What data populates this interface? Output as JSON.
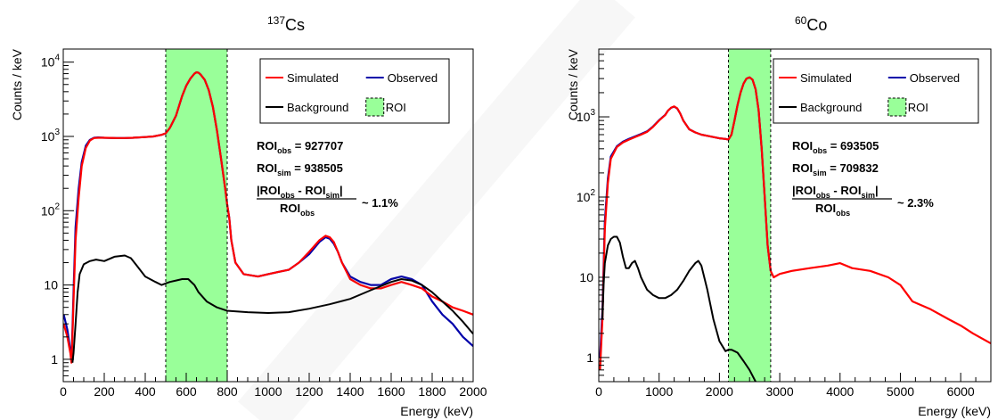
{
  "chart_data": [
    {
      "type": "line",
      "title_isotope_mass": "137",
      "title_isotope_symbol": "Cs",
      "xlabel": "Energy (keV)",
      "ylabel": "Counts / keV",
      "xlim": [
        0,
        2000
      ],
      "ylim": [
        0.5,
        15000
      ],
      "y_scale": "log",
      "xticks": [
        0,
        200,
        400,
        600,
        800,
        1000,
        1200,
        1400,
        1600,
        1800,
        2000
      ],
      "yticks": [
        {
          "value": 1,
          "base": "1",
          "exp": ""
        },
        {
          "value": 10,
          "base": "10",
          "exp": ""
        },
        {
          "value": 100,
          "base": "10",
          "exp": "2"
        },
        {
          "value": 1000,
          "base": "10",
          "exp": "3"
        },
        {
          "value": 10000,
          "base": "10",
          "exp": "4"
        }
      ],
      "roi": [
        500,
        800
      ],
      "legend": {
        "placement": "top-right",
        "entries": [
          {
            "label": "Simulated",
            "color": "#ff0000",
            "kind": "line"
          },
          {
            "label": "Observed",
            "color": "#0000aa",
            "kind": "line"
          },
          {
            "label": "Background",
            "color": "#000000",
            "kind": "line"
          },
          {
            "label": "ROI",
            "color": "#99ff99",
            "kind": "box"
          }
        ]
      },
      "annotation": {
        "obs_label": "ROI",
        "obs_sub": "obs",
        "obs_value": "= 927707",
        "sim_label": "ROI",
        "sim_sub": "sim",
        "sim_value": "= 938505",
        "ratio_value": "~ 1.1%"
      },
      "series": [
        {
          "name": "Simulated",
          "color": "#ff0000",
          "x": [
            2,
            20,
            35,
            40,
            45,
            50,
            60,
            75,
            90,
            110,
            130,
            150,
            170,
            200,
            260,
            300,
            340,
            400,
            440,
            480,
            500,
            520,
            550,
            580,
            600,
            620,
            640,
            650,
            660,
            670,
            690,
            710,
            730,
            750,
            770,
            790,
            800,
            810,
            820,
            840,
            880,
            950,
            1000,
            1050,
            1100,
            1150,
            1200,
            1250,
            1280,
            1300,
            1320,
            1340,
            1360,
            1400,
            1450,
            1500,
            1550,
            1600,
            1650,
            1700,
            1750,
            1800,
            1850,
            1900,
            1950,
            2000
          ],
          "y": [
            3,
            2,
            1.2,
            0.9,
            2,
            6,
            40,
            150,
            400,
            700,
            880,
            950,
            960,
            960,
            950,
            950,
            960,
            980,
            1000,
            1050,
            1100,
            1300,
            1900,
            3500,
            4800,
            6000,
            7000,
            7300,
            7200,
            6800,
            5800,
            4200,
            2500,
            1200,
            500,
            200,
            120,
            80,
            40,
            20,
            14,
            13,
            14,
            15,
            16,
            20,
            28,
            40,
            46,
            44,
            38,
            28,
            20,
            12,
            10,
            9,
            9,
            10,
            11,
            10,
            9,
            7,
            6,
            5,
            4.5,
            4
          ]
        },
        {
          "name": "Observed",
          "color": "#0000aa",
          "x": [
            2,
            20,
            35,
            40,
            45,
            50,
            60,
            75,
            90,
            110,
            130,
            150,
            170,
            200,
            260,
            300,
            340,
            400,
            440,
            480,
            500,
            520,
            550,
            580,
            600,
            620,
            640,
            650,
            660,
            670,
            690,
            710,
            730,
            750,
            770,
            790,
            800,
            810,
            820,
            840,
            880,
            950,
            1000,
            1050,
            1100,
            1150,
            1200,
            1250,
            1280,
            1300,
            1320,
            1340,
            1360,
            1400,
            1450,
            1500,
            1550,
            1600,
            1650,
            1700,
            1750,
            1800,
            1850,
            1900,
            1950,
            2000
          ],
          "y": [
            4,
            2.5,
            1.3,
            1.0,
            2.5,
            8,
            60,
            200,
            450,
            750,
            900,
            960,
            970,
            960,
            950,
            950,
            960,
            980,
            1000,
            1050,
            1100,
            1300,
            1900,
            3500,
            4800,
            6000,
            7000,
            7300,
            7200,
            6800,
            5800,
            4200,
            2500,
            1200,
            500,
            200,
            120,
            80,
            40,
            20,
            14,
            13,
            14,
            15,
            16,
            20,
            26,
            38,
            44,
            42,
            36,
            28,
            20,
            13,
            11,
            10,
            10,
            12,
            13,
            12,
            10,
            6,
            4,
            3,
            2,
            1.5
          ]
        },
        {
          "name": "Background",
          "color": "#000000",
          "x": [
            45,
            50,
            60,
            70,
            80,
            100,
            130,
            160,
            200,
            250,
            300,
            330,
            360,
            400,
            450,
            480,
            500,
            520,
            550,
            580,
            610,
            640,
            660,
            700,
            750,
            800,
            900,
            1000,
            1100,
            1200,
            1300,
            1400,
            1500,
            1600,
            1650,
            1700,
            1750,
            1800,
            1850,
            1900,
            1950,
            2000
          ],
          "y": [
            0.9,
            1.2,
            3,
            8,
            14,
            19,
            21,
            22,
            21,
            24,
            25,
            23,
            18,
            13,
            11,
            10,
            10.5,
            11,
            11.5,
            12,
            12,
            10,
            8,
            6,
            5,
            4.5,
            4.3,
            4.2,
            4.3,
            4.8,
            5.5,
            6.5,
            8.5,
            11,
            12,
            11.5,
            10,
            8,
            6,
            4.5,
            3.2,
            2.2
          ]
        }
      ]
    },
    {
      "type": "line",
      "title_isotope_mass": "60",
      "title_isotope_symbol": "Co",
      "xlabel": "Energy (keV)",
      "ylabel": "Counts / keV",
      "xlim": [
        0,
        6500
      ],
      "ylim": [
        0.5,
        7000
      ],
      "y_scale": "log",
      "xticks": [
        0,
        1000,
        2000,
        3000,
        4000,
        5000,
        6000
      ],
      "yticks": [
        {
          "value": 1,
          "base": "1",
          "exp": ""
        },
        {
          "value": 10,
          "base": "10",
          "exp": ""
        },
        {
          "value": 100,
          "base": "10",
          "exp": "2"
        },
        {
          "value": 1000,
          "base": "10",
          "exp": "3"
        }
      ],
      "roi": [
        2150,
        2850
      ],
      "legend": {
        "placement": "top-right",
        "entries": [
          {
            "label": "Simulated",
            "color": "#ff0000",
            "kind": "line"
          },
          {
            "label": "Observed",
            "color": "#0000aa",
            "kind": "line"
          },
          {
            "label": "Background",
            "color": "#000000",
            "kind": "line"
          },
          {
            "label": "ROI",
            "color": "#99ff99",
            "kind": "box"
          }
        ]
      },
      "annotation": {
        "obs_label": "ROI",
        "obs_sub": "obs",
        "obs_value": "= 693505",
        "sim_label": "ROI",
        "sim_sub": "sim",
        "sim_value": "= 709832",
        "ratio_value": "~ 2.3%"
      },
      "series": [
        {
          "name": "Simulated",
          "color": "#ff0000",
          "x": [
            20,
            60,
            100,
            150,
            200,
            300,
            400,
            500,
            600,
            700,
            800,
            900,
            1000,
            1100,
            1150,
            1200,
            1250,
            1300,
            1350,
            1400,
            1500,
            1600,
            1700,
            1800,
            1900,
            2000,
            2100,
            2150,
            2200,
            2250,
            2300,
            2350,
            2400,
            2450,
            2500,
            2550,
            2600,
            2650,
            2700,
            2750,
            2800,
            2850,
            2900,
            3000,
            3200,
            3500,
            3800,
            4000,
            4200,
            4500,
            4800,
            5000,
            5200,
            5500,
            5800,
            6000,
            6200,
            6500
          ],
          "y": [
            0.7,
            3,
            40,
            150,
            300,
            420,
            480,
            520,
            560,
            600,
            650,
            750,
            900,
            1050,
            1200,
            1300,
            1350,
            1280,
            1100,
            900,
            700,
            640,
            600,
            580,
            560,
            540,
            530,
            520,
            600,
            900,
            1400,
            2000,
            2600,
            3000,
            3100,
            2900,
            2200,
            1200,
            400,
            100,
            25,
            12,
            10,
            11,
            12,
            13,
            14,
            15,
            13,
            12,
            10,
            8,
            5,
            4,
            3,
            2.5,
            2,
            1.5
          ]
        },
        {
          "name": "Observed",
          "color": "#0000aa",
          "x": [
            20,
            60,
            100,
            150,
            200,
            300,
            400,
            500,
            600,
            700,
            800,
            900,
            1000,
            1100,
            1150,
            1200,
            1250,
            1300,
            1350,
            1400,
            1500,
            1600,
            1700,
            1800,
            1900,
            2000,
            2100,
            2150,
            2200,
            2250,
            2300,
            2350,
            2400,
            2450,
            2500,
            2550,
            2600,
            2650,
            2700,
            2750,
            2800,
            2850
          ],
          "y": [
            1,
            4,
            50,
            170,
            320,
            430,
            490,
            530,
            570,
            610,
            660,
            760,
            910,
            1060,
            1200,
            1300,
            1340,
            1270,
            1100,
            900,
            700,
            640,
            600,
            580,
            560,
            540,
            530,
            520,
            600,
            900,
            1400,
            2000,
            2600,
            3000,
            3100,
            2900,
            2200,
            1200,
            400,
            100,
            25,
            12
          ]
        },
        {
          "name": "Background",
          "color": "#000000",
          "x": [
            60,
            80,
            100,
            150,
            200,
            250,
            300,
            350,
            400,
            450,
            500,
            550,
            600,
            650,
            700,
            800,
            900,
            1000,
            1100,
            1200,
            1300,
            1400,
            1500,
            1600,
            1650,
            1700,
            1800,
            1900,
            2000,
            2100,
            2150,
            2200,
            2250,
            2300,
            2400,
            2500,
            2600
          ],
          "y": [
            3,
            8,
            15,
            25,
            30,
            32,
            32,
            27,
            18,
            13,
            13,
            15,
            16,
            13,
            10,
            7,
            6,
            5.5,
            5.5,
            6,
            7,
            9,
            12,
            15,
            16,
            14,
            7,
            3,
            1.6,
            1.2,
            1.25,
            1.25,
            1.2,
            1.15,
            0.9,
            0.7,
            0.5
          ]
        }
      ]
    }
  ]
}
